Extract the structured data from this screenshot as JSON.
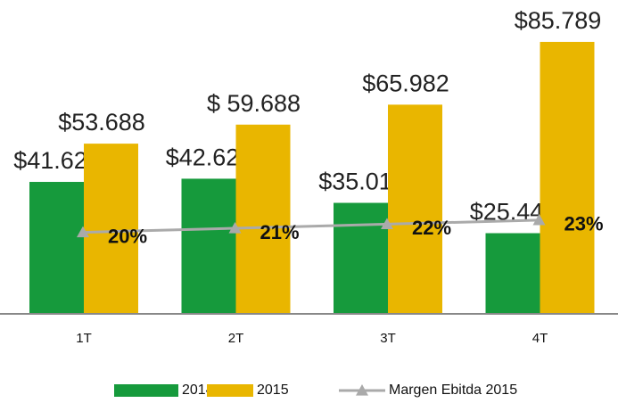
{
  "chart_data": {
    "type": "bar",
    "categories": [
      "1T",
      "2T",
      "3T",
      "4T"
    ],
    "series": [
      {
        "name": "2014",
        "color": "#169a3c",
        "values": [
          41621,
          42627,
          35011,
          25448
        ],
        "value_labels": [
          "$41.621",
          "$42.627",
          "$35.011",
          "$25.448"
        ]
      },
      {
        "name": "2015",
        "color": "#e9b600",
        "values": [
          53688,
          59688,
          65982,
          85789
        ],
        "value_labels": [
          "$53.688",
          "$ 59.688",
          "$65.982",
          "$85.789"
        ]
      },
      {
        "name": "Margen Ebitda 2015",
        "type": "line",
        "axis": "y2",
        "color": "#aaaaaa",
        "values": [
          20,
          21,
          22,
          23
        ],
        "value_labels": [
          "20%",
          "21%",
          "22%",
          "23%"
        ]
      }
    ],
    "ylim": [
      0,
      90000
    ],
    "y2lim": [
      0,
      70
    ],
    "legend": "bottom"
  }
}
